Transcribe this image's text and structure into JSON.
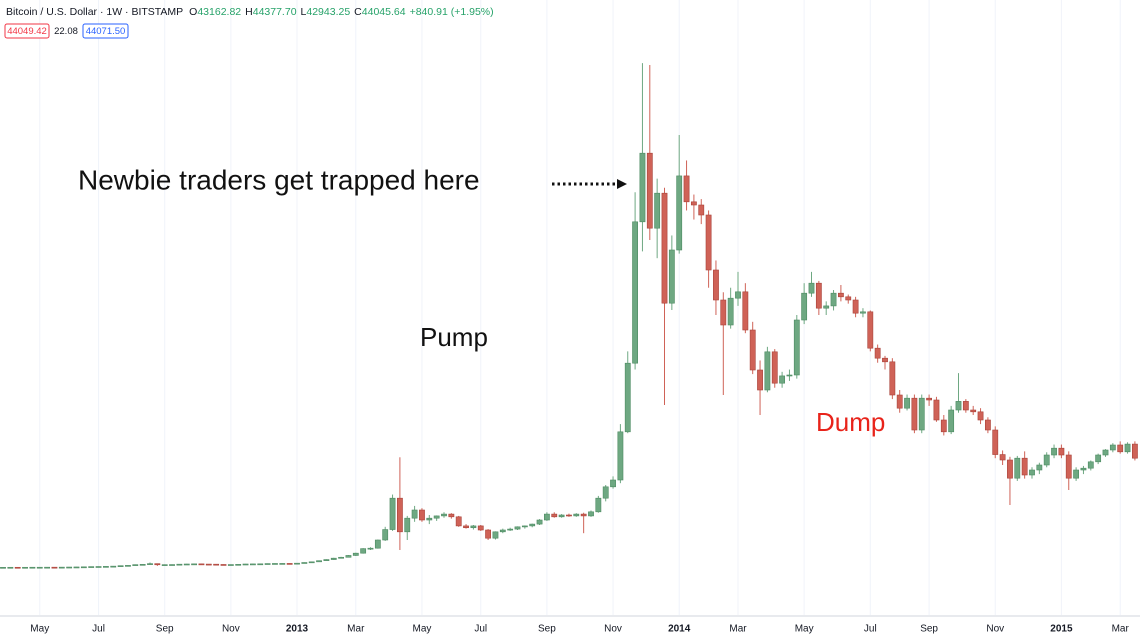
{
  "header": {
    "symbol": "Bitcoin / U.S. Dollar · 1W · BITSTAMP",
    "ohlc": [
      {
        "key": "O",
        "value": "43162.82"
      },
      {
        "key": "H",
        "value": "44377.70"
      },
      {
        "key": "L",
        "value": "42943.25"
      },
      {
        "key": "C",
        "value": "44045.64"
      }
    ],
    "change": "+840.91 (+1.95%)",
    "bid": "44049.42",
    "spread": "22.08",
    "ask": "44071.50"
  },
  "chart_data": {
    "type": "candlestick",
    "up_color": "#6ea882",
    "down_color": "#cf6257",
    "grid": true,
    "ylim": [
      -100,
      1165
    ],
    "annotations": [
      {
        "text": "Newbie traders get trapped here",
        "color": "#111111"
      },
      {
        "text": "Pump",
        "color": "#111111"
      },
      {
        "text": "Dump",
        "color": "#e8231a"
      }
    ],
    "categories": [
      null,
      null,
      null,
      null,
      null,
      "May",
      null,
      null,
      null,
      null,
      null,
      null,
      null,
      "Jul",
      null,
      null,
      null,
      null,
      null,
      null,
      null,
      null,
      "Sep",
      null,
      null,
      null,
      null,
      null,
      null,
      null,
      null,
      "Nov",
      null,
      null,
      null,
      null,
      null,
      null,
      null,
      null,
      "2013",
      null,
      null,
      null,
      null,
      null,
      null,
      null,
      "Mar",
      null,
      null,
      null,
      null,
      null,
      null,
      null,
      null,
      "May",
      null,
      null,
      null,
      null,
      null,
      null,
      null,
      "Jul",
      null,
      null,
      null,
      null,
      null,
      null,
      null,
      null,
      "Sep",
      null,
      null,
      null,
      null,
      null,
      null,
      null,
      null,
      "Nov",
      null,
      null,
      null,
      null,
      null,
      null,
      null,
      null,
      "2014",
      null,
      null,
      null,
      null,
      null,
      null,
      null,
      "Mar",
      null,
      null,
      null,
      null,
      null,
      null,
      null,
      null,
      "May",
      null,
      null,
      null,
      null,
      null,
      null,
      null,
      null,
      "Jul",
      null,
      null,
      null,
      null,
      null,
      null,
      null,
      "Sep",
      null,
      null,
      null,
      null,
      null,
      null,
      null,
      null,
      "Nov",
      null,
      null,
      null,
      null,
      null,
      null,
      null,
      null,
      "2015",
      null,
      null,
      null,
      null,
      null,
      null,
      null,
      "Mar",
      null,
      null
    ],
    "open": [
      4.8,
      4.9,
      5.0,
      4.9,
      5.0,
      5.1,
      5.1,
      5.2,
      5.1,
      5.3,
      5.5,
      5.7,
      6.0,
      6.5,
      6.7,
      7.0,
      7.5,
      8.5,
      9.2,
      10.8,
      11.5,
      13.0,
      10.5,
      10.8,
      11.0,
      11.8,
      12.2,
      12.5,
      12.0,
      11.8,
      11.2,
      10.8,
      11.0,
      11.5,
      12.2,
      12.4,
      12.6,
      13.2,
      13.4,
      13.5,
      13.3,
      14.0,
      15.5,
      17.0,
      19.5,
      22.0,
      25.0,
      27.0,
      31.0,
      36.0,
      46,
      47,
      65,
      88,
      157,
      83,
      113,
      131,
      109,
      113,
      118,
      122,
      116,
      96,
      92,
      96,
      87,
      69,
      83,
      87,
      89,
      94,
      96,
      100,
      109,
      122,
      116,
      120,
      118,
      122,
      118,
      127,
      157,
      182,
      197,
      303,
      454,
      765,
      916,
      751,
      828,
      586,
      703,
      866,
      809,
      802,
      780,
      659,
      593,
      538,
      597,
      611,
      527,
      439,
      395,
      479,
      410,
      426,
      428,
      549,
      608,
      630,
      575,
      580,
      608,
      600,
      593,
      564,
      567,
      487,
      465,
      457,
      384,
      355,
      377,
      307,
      377,
      373,
      329,
      303,
      351,
      370,
      351,
      347,
      329,
      307,
      253,
      241,
      201,
      245,
      208,
      219,
      230,
      252,
      267,
      252,
      201,
      219,
      223,
      237,
      252,
      263,
      274,
      259,
      276
    ],
    "high": [
      5.1,
      5.2,
      5.1,
      5.2,
      5.3,
      5.3,
      5.4,
      5.3,
      5.5,
      5.7,
      5.9,
      6.2,
      6.7,
      6.9,
      7.2,
      7.8,
      8.8,
      9.5,
      11.2,
      12.0,
      15.5,
      13.2,
      11.2,
      11.3,
      12.1,
      12.5,
      12.8,
      12.6,
      12.2,
      11.9,
      11.4,
      11.2,
      11.7,
      12.4,
      12.6,
      12.8,
      13.4,
      13.6,
      13.7,
      13.6,
      14.3,
      15.8,
      17.4,
      20.0,
      22.5,
      25.8,
      28.0,
      32.0,
      37.0,
      47.0,
      49,
      66,
      94,
      165,
      247,
      118,
      140,
      135,
      120,
      119,
      126,
      124,
      118,
      100,
      98,
      98,
      89,
      84,
      90,
      92,
      95,
      97,
      101,
      111,
      126,
      126,
      122,
      123,
      124,
      125,
      130,
      162,
      186,
      205,
      320,
      480,
      830,
      1114,
      1110,
      860,
      840,
      735,
      956,
      900,
      825,
      815,
      790,
      680,
      610,
      620,
      655,
      630,
      545,
      460,
      490,
      485,
      435,
      440,
      560,
      630,
      655,
      635,
      590,
      615,
      626,
      605,
      600,
      575,
      570,
      495,
      470,
      465,
      395,
      385,
      385,
      385,
      385,
      380,
      340,
      360,
      432,
      375,
      360,
      355,
      335,
      315,
      262,
      248,
      250,
      260,
      225,
      235,
      258,
      275,
      275,
      260,
      225,
      228,
      240,
      255,
      265,
      278,
      282,
      280,
      282
    ],
    "low": [
      4.7,
      4.8,
      4.7,
      4.8,
      4.9,
      5.0,
      5.0,
      5.0,
      5.0,
      5.2,
      5.4,
      5.6,
      5.9,
      6.3,
      6.5,
      6.9,
      7.4,
      8.3,
      9.0,
      10.5,
      11.2,
      8.0,
      10.0,
      10.5,
      10.8,
      11.6,
      12.0,
      11.8,
      11.6,
      11.0,
      10.6,
      10.6,
      10.9,
      11.4,
      12.0,
      12.2,
      12.5,
      13.0,
      13.2,
      13.1,
      13.2,
      13.9,
      15.3,
      16.8,
      19.2,
      21.5,
      24.5,
      26.5,
      30.0,
      35.0,
      43,
      46,
      63,
      85,
      43,
      65,
      105,
      105,
      100,
      107,
      114,
      112,
      94,
      90,
      88,
      85,
      65,
      66,
      80,
      85,
      87,
      90,
      93,
      98,
      107,
      114,
      114,
      116,
      116,
      80,
      116,
      125,
      150,
      178,
      190,
      300,
      440,
      700,
      725,
      685,
      362,
      571,
      695,
      790,
      770,
      760,
      620,
      560,
      384,
      530,
      580,
      520,
      430,
      340,
      390,
      400,
      400,
      415,
      420,
      540,
      600,
      560,
      560,
      570,
      590,
      585,
      555,
      555,
      480,
      455,
      440,
      375,
      345,
      350,
      300,
      300,
      360,
      325,
      295,
      298,
      345,
      345,
      340,
      320,
      300,
      245,
      230,
      142,
      195,
      200,
      200,
      210,
      225,
      245,
      245,
      175,
      195,
      210,
      218,
      232,
      248,
      258,
      255,
      255,
      240
    ],
    "close": [
      4.9,
      5.0,
      4.9,
      5.0,
      5.1,
      5.1,
      5.2,
      5.1,
      5.3,
      5.5,
      5.7,
      6.0,
      6.5,
      6.7,
      7.0,
      7.5,
      8.5,
      9.2,
      10.8,
      11.5,
      13.0,
      10.5,
      10.8,
      11.0,
      11.8,
      12.2,
      12.5,
      12.0,
      11.8,
      11.2,
      10.8,
      11.0,
      11.5,
      12.2,
      12.4,
      12.6,
      13.2,
      13.4,
      13.5,
      13.3,
      14.0,
      15.5,
      17.0,
      19.5,
      22.0,
      25.0,
      27.0,
      31.0,
      36.0,
      46.0,
      47,
      65,
      88,
      157,
      83,
      113,
      131,
      109,
      113,
      118,
      122,
      116,
      96,
      92,
      96,
      87,
      69,
      83,
      87,
      89,
      94,
      96,
      100,
      109,
      122,
      116,
      120,
      118,
      122,
      118,
      127,
      157,
      182,
      197,
      303,
      454,
      765,
      916,
      751,
      828,
      586,
      703,
      866,
      809,
      802,
      780,
      659,
      593,
      538,
      597,
      611,
      527,
      439,
      395,
      479,
      410,
      426,
      428,
      549,
      608,
      630,
      575,
      580,
      608,
      600,
      593,
      564,
      567,
      487,
      465,
      457,
      384,
      355,
      377,
      307,
      377,
      373,
      329,
      303,
      351,
      370,
      351,
      347,
      329,
      307,
      253,
      241,
      201,
      245,
      208,
      219,
      230,
      252,
      267,
      252,
      201,
      219,
      223,
      237,
      252,
      263,
      274,
      259,
      276,
      245
    ]
  }
}
